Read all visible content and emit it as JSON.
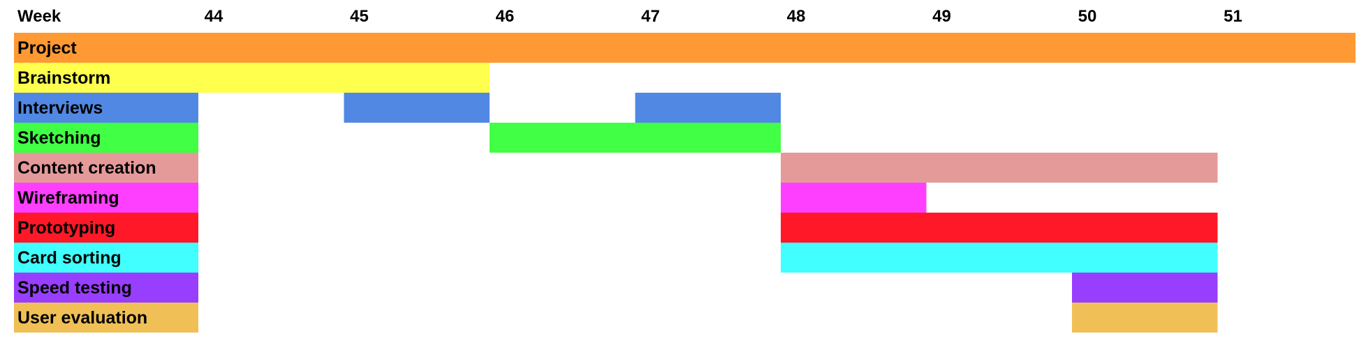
{
  "chart_data": {
    "type": "gantt",
    "header_label": "Week",
    "weeks": [
      "44",
      "45",
      "46",
      "47",
      "48",
      "49",
      "50",
      "51"
    ],
    "x_range": [
      44,
      52
    ],
    "tasks": [
      {
        "name": "Project",
        "color": "#FF9933",
        "segments": [
          [
            44,
            52
          ]
        ]
      },
      {
        "name": "Brainstorm",
        "color": "#FFFF4D",
        "segments": [
          [
            44,
            46
          ]
        ]
      },
      {
        "name": "Interviews",
        "color": "#5188E3",
        "segments": [
          [
            44,
            44
          ],
          [
            45,
            46
          ],
          [
            47,
            48
          ]
        ]
      },
      {
        "name": "Sketching",
        "color": "#41FF45",
        "segments": [
          [
            44,
            44
          ],
          [
            46,
            48
          ]
        ]
      },
      {
        "name": "Content creation",
        "color": "#E59A9A",
        "segments": [
          [
            44,
            44
          ],
          [
            48,
            51
          ]
        ]
      },
      {
        "name": "Wireframing",
        "color": "#FF3FFF",
        "segments": [
          [
            44,
            44
          ],
          [
            48,
            49
          ]
        ]
      },
      {
        "name": "Prototyping",
        "color": "#FF1928",
        "segments": [
          [
            44,
            44
          ],
          [
            48,
            51
          ]
        ]
      },
      {
        "name": "Card sorting",
        "color": "#41FFFF",
        "segments": [
          [
            44,
            44
          ],
          [
            48,
            51
          ]
        ]
      },
      {
        "name": "Speed testing",
        "color": "#983EFF",
        "segments": [
          [
            44,
            44
          ],
          [
            50,
            51
          ]
        ]
      },
      {
        "name": "User evaluation",
        "color": "#F0C056",
        "segments": [
          [
            44,
            44
          ],
          [
            50,
            51
          ]
        ]
      }
    ]
  }
}
